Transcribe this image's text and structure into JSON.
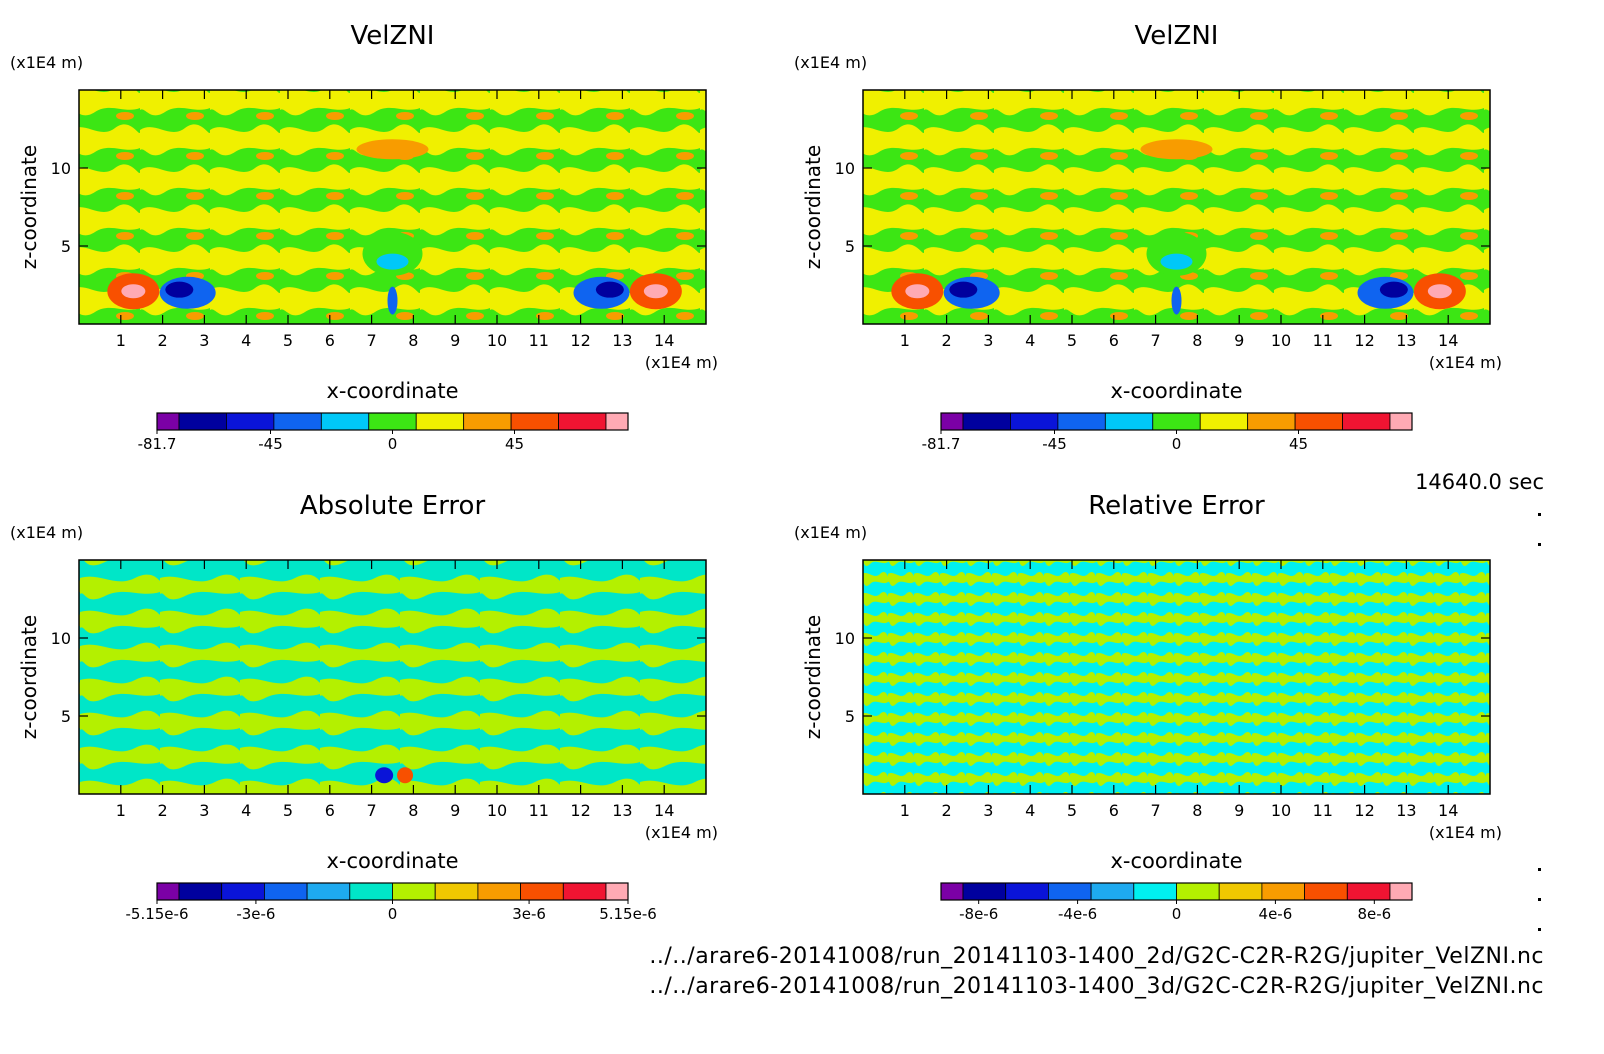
{
  "chart_data": [
    {
      "type": "heatmap",
      "title": "VelZNI",
      "xlabel": "x-coordinate",
      "ylabel": "z-coordinate",
      "x_unit": "(x1E4 m)",
      "y_unit": "(x1E4 m)",
      "xlim": [
        0,
        15
      ],
      "ylim": [
        0,
        15
      ],
      "x_ticks": [
        "1",
        "2",
        "3",
        "4",
        "5",
        "6",
        "7",
        "8",
        "9",
        "10",
        "11",
        "12",
        "13",
        "14"
      ],
      "y_ticks": [
        "5",
        "10"
      ],
      "colorbar": {
        "tick_labels": [
          "-81.7",
          "-45",
          "0",
          "45"
        ],
        "colors": [
          "#7b00a6",
          "#00009e",
          "#0a14d8",
          "#0f64f0",
          "#00c8f8",
          "#3ce614",
          "#f0f000",
          "#f89c00",
          "#f85000",
          "#f01432",
          "#ffaab4"
        ]
      }
    },
    {
      "type": "heatmap",
      "title": "VelZNI",
      "xlabel": "x-coordinate",
      "ylabel": "z-coordinate",
      "x_unit": "(x1E4 m)",
      "y_unit": "(x1E4 m)",
      "xlim": [
        0,
        15
      ],
      "ylim": [
        0,
        15
      ],
      "x_ticks": [
        "1",
        "2",
        "3",
        "4",
        "5",
        "6",
        "7",
        "8",
        "9",
        "10",
        "11",
        "12",
        "13",
        "14"
      ],
      "y_ticks": [
        "5",
        "10"
      ],
      "colorbar": {
        "tick_labels": [
          "-81.7",
          "-45",
          "0",
          "45"
        ],
        "colors": [
          "#7b00a6",
          "#00009e",
          "#0a14d8",
          "#0f64f0",
          "#00c8f8",
          "#3ce614",
          "#f0f000",
          "#f89c00",
          "#f85000",
          "#f01432",
          "#ffaab4"
        ]
      }
    },
    {
      "type": "heatmap",
      "title": "Absolute Error",
      "xlabel": "x-coordinate",
      "ylabel": "z-coordinate",
      "x_unit": "(x1E4 m)",
      "y_unit": "(x1E4 m)",
      "xlim": [
        0,
        15
      ],
      "ylim": [
        0,
        15
      ],
      "x_ticks": [
        "1",
        "2",
        "3",
        "4",
        "5",
        "6",
        "7",
        "8",
        "9",
        "10",
        "11",
        "12",
        "13",
        "14"
      ],
      "y_ticks": [
        "5",
        "10"
      ],
      "colorbar": {
        "tick_labels": [
          "-5.15e-6",
          "-3e-6",
          "0",
          "3e-6",
          "5.15e-6"
        ],
        "colors": [
          "#7b00a6",
          "#00009e",
          "#0a14d8",
          "#0f64f0",
          "#1eaaf0",
          "#00e6c8",
          "#b4f000",
          "#f0c800",
          "#f89c00",
          "#f85000",
          "#f01432",
          "#ffaab4"
        ]
      }
    },
    {
      "type": "heatmap",
      "title": "Relative Error",
      "xlabel": "x-coordinate",
      "ylabel": "z-coordinate",
      "x_unit": "(x1E4 m)",
      "y_unit": "(x1E4 m)",
      "xlim": [
        0,
        15
      ],
      "ylim": [
        0,
        15
      ],
      "x_ticks": [
        "1",
        "2",
        "3",
        "4",
        "5",
        "6",
        "7",
        "8",
        "9",
        "10",
        "11",
        "12",
        "13",
        "14"
      ],
      "y_ticks": [
        "5",
        "10"
      ],
      "colorbar": {
        "tick_labels": [
          "-8e-6",
          "-4e-6",
          "0",
          "4e-6",
          "8e-6"
        ],
        "colors": [
          "#7b00a6",
          "#00009e",
          "#0a14d8",
          "#0f64f0",
          "#1eaaf0",
          "#00f0f0",
          "#b4f000",
          "#f0c800",
          "#f89c00",
          "#f85000",
          "#f01432",
          "#ffaab4"
        ]
      }
    }
  ],
  "timestamp": "14640.0 sec",
  "footer": {
    "line1": "../../arare6-20141008/run_20141103-1400_2d/G2C-C2R-R2G/jupiter_VelZNI.nc",
    "line2": "../../arare6-20141008/run_20141103-1400_3d/G2C-C2R-R2G/jupiter_VelZNI.nc"
  }
}
